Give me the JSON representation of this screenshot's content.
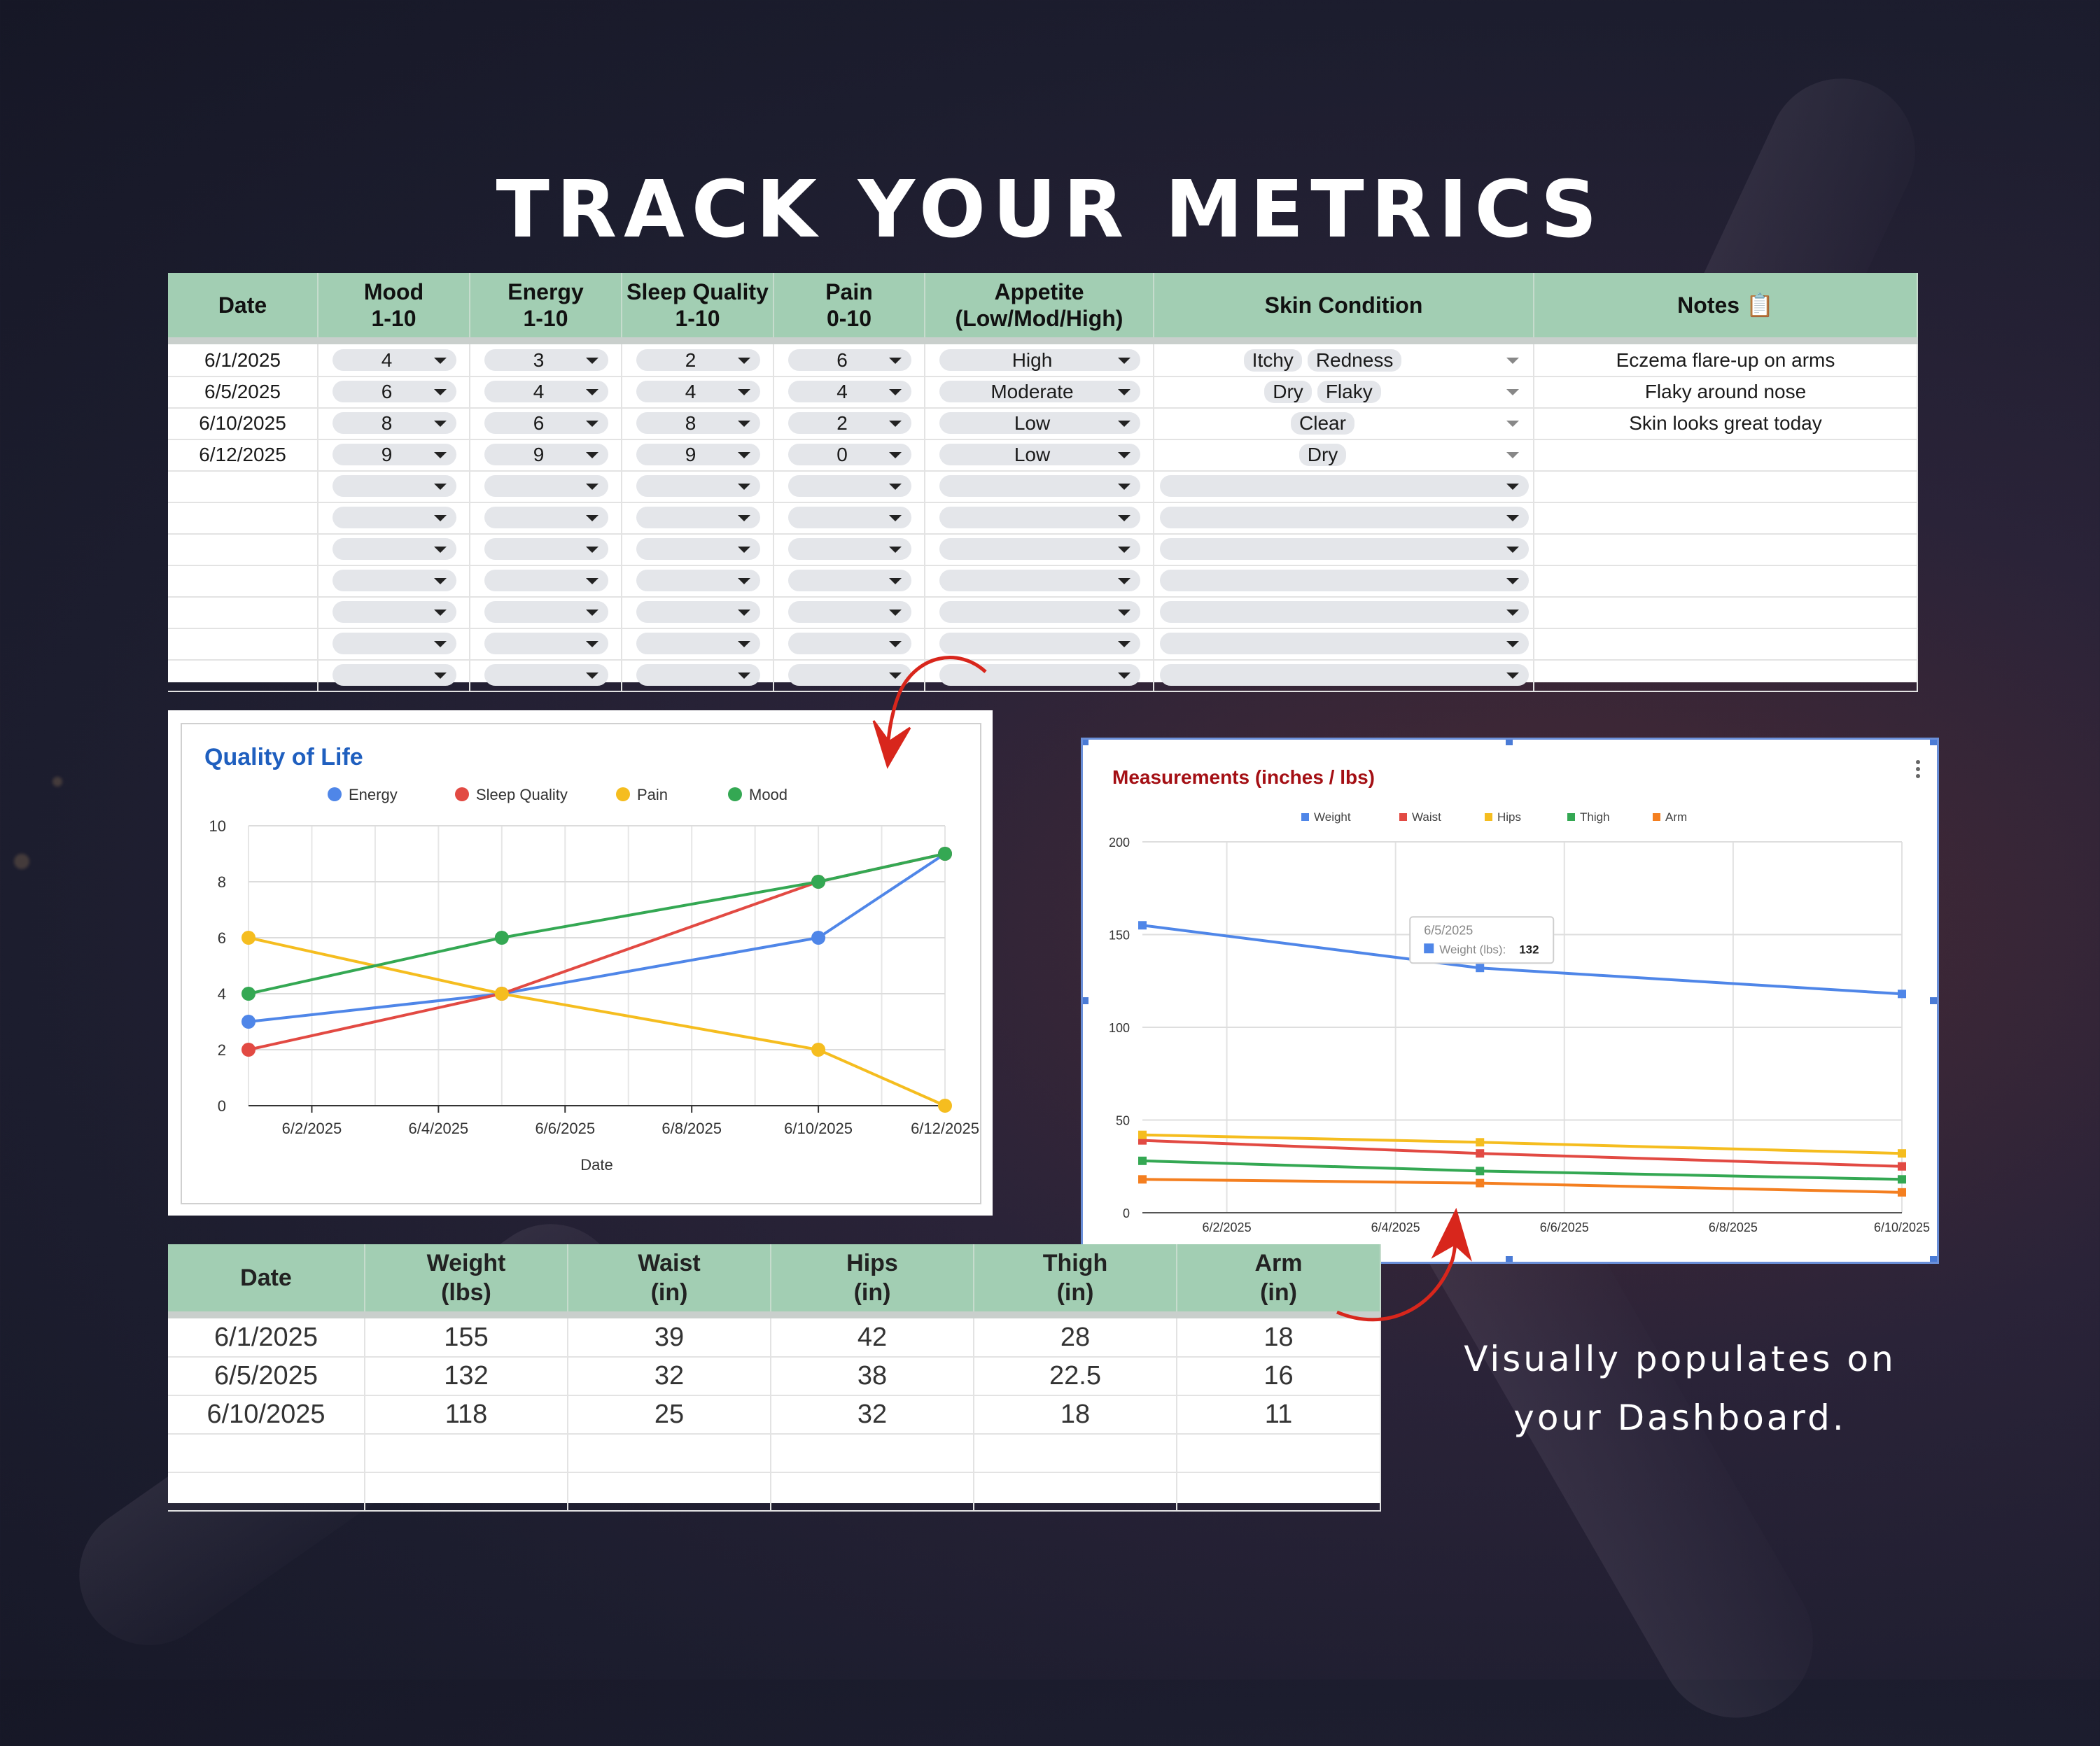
{
  "page": {
    "title": "TRACK YOUR METRICS",
    "caption": "Visually populates on your Dashboard."
  },
  "metrics_table": {
    "headers": [
      "Date",
      "Mood\n1-10",
      "Energy\n1-10",
      "Sleep Quality\n1-10",
      "Pain\n0-10",
      "Appetite\n(Low/Mod/High)",
      "Skin Condition",
      "Notes 📋"
    ],
    "rows": [
      {
        "date": "6/1/2025",
        "mood": "4",
        "energy": "3",
        "sleep": "2",
        "pain": "6",
        "appetite": "High",
        "skin": [
          "Itchy",
          "Redness"
        ],
        "notes": "Eczema flare-up on arms"
      },
      {
        "date": "6/5/2025",
        "mood": "6",
        "energy": "4",
        "sleep": "4",
        "pain": "4",
        "appetite": "Moderate",
        "skin": [
          "Dry",
          "Flaky"
        ],
        "notes": "Flaky around nose"
      },
      {
        "date": "6/10/2025",
        "mood": "8",
        "energy": "6",
        "sleep": "8",
        "pain": "2",
        "appetite": "Low",
        "skin": [
          "Clear"
        ],
        "notes": "Skin looks great today"
      },
      {
        "date": "6/12/2025",
        "mood": "9",
        "energy": "9",
        "sleep": "9",
        "pain": "0",
        "appetite": "Low",
        "skin": [
          "Dry"
        ],
        "notes": ""
      }
    ],
    "empty_rows": 7
  },
  "measurements_table": {
    "headers": [
      "Date",
      "Weight\n(lbs)",
      "Waist\n(in)",
      "Hips\n(in)",
      "Thigh\n(in)",
      "Arm\n(in)"
    ],
    "rows": [
      [
        "6/1/2025",
        "155",
        "39",
        "42",
        "28",
        "18"
      ],
      [
        "6/5/2025",
        "132",
        "32",
        "38",
        "22.5",
        "16"
      ],
      [
        "6/10/2025",
        "118",
        "25",
        "32",
        "18",
        "11"
      ]
    ],
    "empty_rows": 2
  },
  "chart_data": [
    {
      "type": "line",
      "title": "Quality of Life",
      "xlabel": "Date",
      "ylabel": "",
      "ylim": [
        0,
        10
      ],
      "yticks": [
        0,
        2,
        4,
        6,
        8,
        10
      ],
      "x_range": [
        "6/1/2025",
        "6/12/2025"
      ],
      "xticks": [
        "6/2/2025",
        "6/4/2025",
        "6/6/2025",
        "6/8/2025",
        "6/10/2025",
        "6/12/2025"
      ],
      "x": [
        "6/1/2025",
        "6/5/2025",
        "6/10/2025",
        "6/12/2025"
      ],
      "legend": "top",
      "grid": true,
      "series": [
        {
          "name": "Energy",
          "color": "#4f86e8",
          "values": [
            3,
            4,
            6,
            9
          ]
        },
        {
          "name": "Sleep Quality",
          "color": "#e24a43",
          "values": [
            2,
            4,
            8,
            9
          ]
        },
        {
          "name": "Pain",
          "color": "#f5bd1f",
          "values": [
            6,
            4,
            2,
            0
          ]
        },
        {
          "name": "Mood",
          "color": "#34a853",
          "values": [
            4,
            6,
            8,
            9
          ]
        }
      ]
    },
    {
      "type": "line",
      "title": "Measurements (inches / lbs)",
      "ylim": [
        0,
        200
      ],
      "yticks": [
        0,
        50,
        100,
        150,
        200
      ],
      "x_range": [
        "6/1/2025",
        "6/10/2025"
      ],
      "xticks": [
        "6/2/2025",
        "6/4/2025",
        "6/6/2025",
        "6/8/2025",
        "6/10/2025"
      ],
      "x": [
        "6/1/2025",
        "6/5/2025",
        "6/10/2025"
      ],
      "legend": "top",
      "grid": true,
      "series": [
        {
          "name": "Weight",
          "color": "#4f86e8",
          "values": [
            155,
            132,
            118
          ]
        },
        {
          "name": "Waist",
          "color": "#e24a43",
          "values": [
            39,
            32,
            25
          ]
        },
        {
          "name": "Hips",
          "color": "#f5bd1f",
          "values": [
            42,
            38,
            32
          ]
        },
        {
          "name": "Thigh",
          "color": "#34a853",
          "values": [
            28,
            22.5,
            18
          ]
        },
        {
          "name": "Arm",
          "color": "#f47f20",
          "values": [
            18,
            16,
            11
          ]
        }
      ],
      "tooltip": {
        "date": "6/5/2025",
        "label": "Weight (lbs):",
        "value": "132"
      }
    }
  ]
}
